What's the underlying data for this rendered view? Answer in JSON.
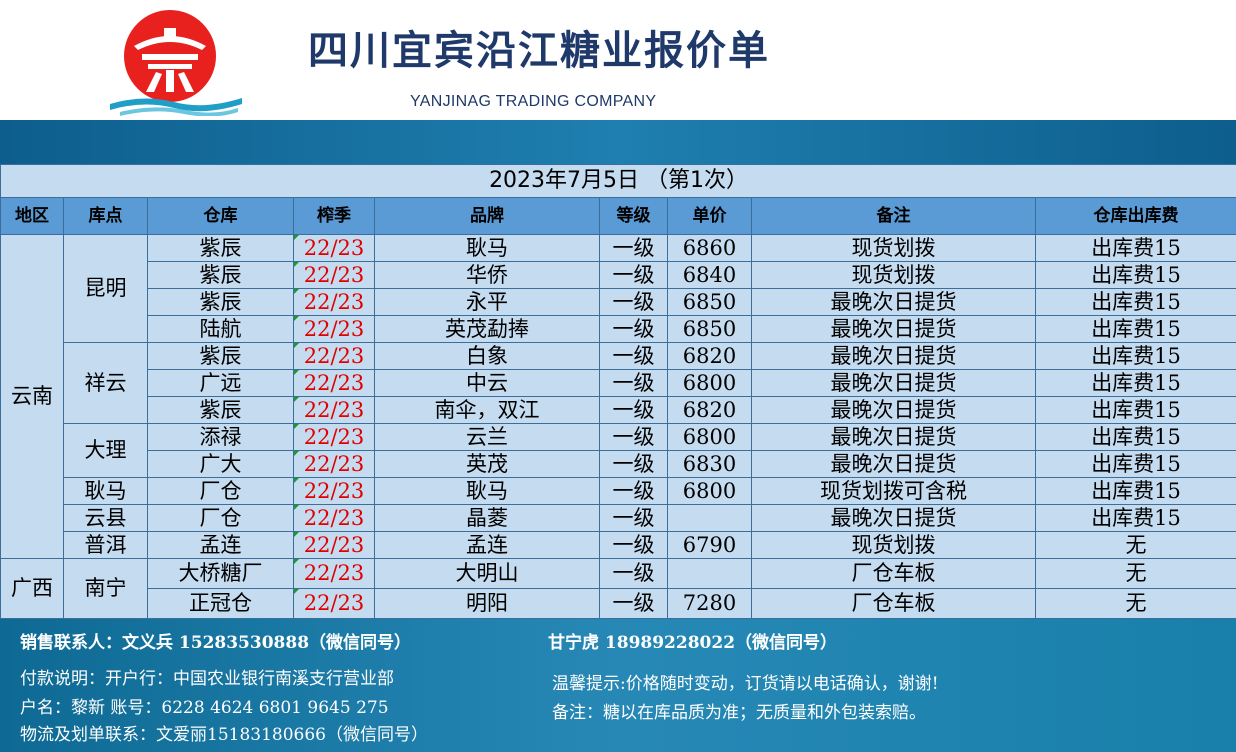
{
  "header": {
    "title": "四川宜宾沿江糖业报价单",
    "subtitle": "YANJINAG TRADING COMPANY",
    "logo_icon": "red-circle-temple-logo-icon",
    "colors": {
      "title": "#1f3a6a",
      "logo_red": "#e8211f",
      "band": "#0d5e8c",
      "header_row": "#5b9bd5",
      "table_bg": "#c5dbef",
      "season_red": "#e00000"
    }
  },
  "table": {
    "date_line": "2023年7月5日 （第1次）",
    "columns": [
      "地区",
      "库点",
      "仓库",
      "榨季",
      "品牌",
      "等级",
      "单价",
      "备注",
      "仓库出库费"
    ],
    "groups": [
      {
        "region": "云南",
        "locations": [
          {
            "name": "昆明",
            "rows": [
              {
                "warehouse": "紫辰",
                "season": "22/23",
                "brand": "耿马",
                "grade": "一级",
                "price": "6860",
                "note": "现货划拨",
                "fee": "出库费15"
              },
              {
                "warehouse": "紫辰",
                "season": "22/23",
                "brand": "华侨",
                "grade": "一级",
                "price": "6840",
                "note": "现货划拨",
                "fee": "出库费15"
              },
              {
                "warehouse": "紫辰",
                "season": "22/23",
                "brand": "永平",
                "grade": "一级",
                "price": "6850",
                "note": "最晚次日提货",
                "fee": "出库费15"
              },
              {
                "warehouse": "陆航",
                "season": "22/23",
                "brand": "英茂勐捧",
                "grade": "一级",
                "price": "6850",
                "note": "最晚次日提货",
                "fee": "出库费15"
              }
            ]
          },
          {
            "name": "祥云",
            "rows": [
              {
                "warehouse": "紫辰",
                "season": "22/23",
                "brand": "白象",
                "grade": "一级",
                "price": "6820",
                "note": "最晚次日提货",
                "fee": "出库费15"
              },
              {
                "warehouse": "广远",
                "season": "22/23",
                "brand": "中云",
                "grade": "一级",
                "price": "6800",
                "note": "最晚次日提货",
                "fee": "出库费15"
              },
              {
                "warehouse": "紫辰",
                "season": "22/23",
                "brand": "南伞，双江",
                "grade": "一级",
                "price": "6820",
                "note": "最晚次日提货",
                "fee": "出库费15"
              }
            ]
          },
          {
            "name": "大理",
            "rows": [
              {
                "warehouse": "添禄",
                "season": "22/23",
                "brand": "云兰",
                "grade": "一级",
                "price": "6800",
                "note": "最晚次日提货",
                "fee": "出库费15"
              },
              {
                "warehouse": "广大",
                "season": "22/23",
                "brand": "英茂",
                "grade": "一级",
                "price": "6830",
                "note": "最晚次日提货",
                "fee": "出库费15"
              }
            ]
          },
          {
            "name": "耿马",
            "rows": [
              {
                "warehouse": "厂仓",
                "season": "22/23",
                "brand": "耿马",
                "grade": "一级",
                "price": "6800",
                "note": "现货划拨可含税",
                "fee": "出库费15"
              }
            ]
          },
          {
            "name": "云县",
            "rows": [
              {
                "warehouse": "厂仓",
                "season": "22/23",
                "brand": "晶菱",
                "grade": "一级",
                "price": "",
                "note": "最晚次日提货",
                "fee": "出库费15"
              }
            ]
          },
          {
            "name": "普洱",
            "rows": [
              {
                "warehouse": "孟连",
                "season": "22/23",
                "brand": "孟连",
                "grade": "一级",
                "price": "6790",
                "note": "现货划拨",
                "fee": "无"
              }
            ]
          }
        ]
      },
      {
        "region": "广西",
        "locations": [
          {
            "name": "南宁",
            "rows": [
              {
                "warehouse": "大桥糖厂",
                "season": "22/23",
                "brand": "大明山",
                "grade": "一级",
                "price": "",
                "note": "厂仓车板",
                "fee": "无"
              },
              {
                "warehouse": "正冠仓",
                "season": "22/23",
                "brand": "明阳",
                "grade": "一级",
                "price": "7280",
                "note": "厂仓车板",
                "fee": "无"
              }
            ]
          }
        ]
      }
    ]
  },
  "footer": {
    "sales_label": "销售联系人：",
    "sales_contact": "文义兵 15283530888（微信同号）",
    "sales_contact2": "甘宁虎 18989228022（微信同号）",
    "payment": "付款说明：开户行：中国农业银行南溪支行营业部",
    "account": "户名：黎新  账号：6228 4624 6801 9645 275",
    "logistics": "物流及划单联系：文爱丽15183180666（微信同号）",
    "tip": "温馨提示:价格随时变动，订货请以电话确认，谢谢!",
    "remark": "备注：糖以在库品质为准；无质量和外包装索赔。"
  }
}
